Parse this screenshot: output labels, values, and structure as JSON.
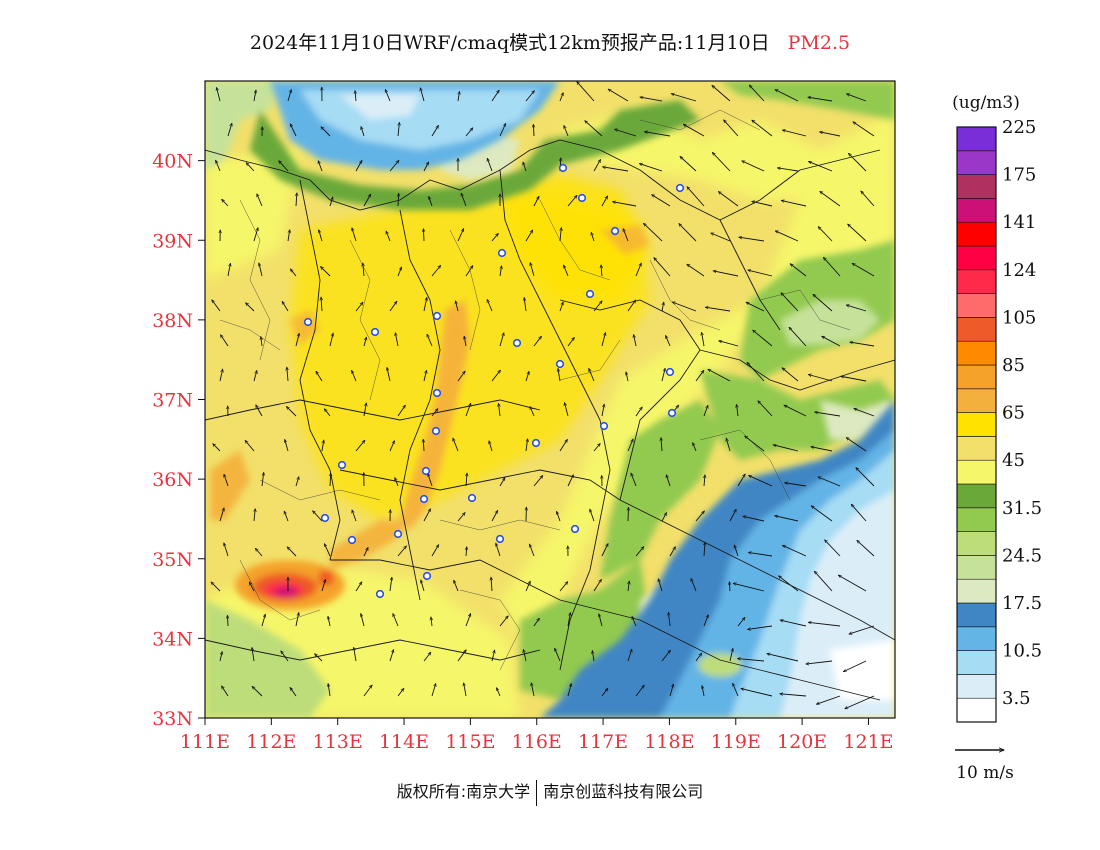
{
  "title": {
    "main": "2024年11月10日WRF/cmaq模式12km预报产品:11月10日",
    "pollutant": "PM2.5"
  },
  "axes": {
    "lat_labels": [
      "40N",
      "39N",
      "38N",
      "37N",
      "36N",
      "35N",
      "34N",
      "33N"
    ],
    "lat_values": [
      40,
      39,
      38,
      37,
      36,
      35,
      34,
      33
    ],
    "lon_labels": [
      "111E",
      "112E",
      "113E",
      "114E",
      "115E",
      "116E",
      "117E",
      "118E",
      "119E",
      "120E",
      "121E"
    ],
    "lon_values": [
      111,
      112,
      113,
      114,
      115,
      116,
      117,
      118,
      119,
      120,
      121
    ],
    "lon_range": [
      111,
      121.4
    ],
    "lat_range": [
      33,
      41
    ],
    "label_color": "#e8323c"
  },
  "colorbar": {
    "unit": "(ug/m3)",
    "colors": [
      "#ffffff",
      "#dbeef8",
      "#a6dcf4",
      "#64b4e6",
      "#3f86c4",
      "#dde9c0",
      "#c6e29a",
      "#bddd7a",
      "#92c94f",
      "#6aa83a",
      "#f6f66a",
      "#f2e06a",
      "#ffe200",
      "#f4b03c",
      "#f4a22a",
      "#ff8a00",
      "#ee5a28",
      "#ff6a6a",
      "#ff2a4a",
      "#ff0044",
      "#ff0000",
      "#cc1077",
      "#b03060",
      "#9a36c8",
      "#7a2ed8"
    ],
    "labels": [
      "3.5",
      "10.5",
      "17.5",
      "24.5",
      "31.5",
      "45",
      "65",
      "85",
      "105",
      "124",
      "141",
      "175",
      "225"
    ]
  },
  "wind_legend": {
    "label": "10 m/s"
  },
  "chart_data": {
    "type": "heatmap",
    "variable": "PM2.5",
    "unit": "ug/m3",
    "region": {
      "lon": [
        111,
        121.4
      ],
      "lat": [
        33,
        41
      ]
    },
    "pollution_zones": [
      {
        "lon": 112.1,
        "lat": 34.65,
        "level": "175"
      },
      {
        "lon": 114.5,
        "lat": 36.8,
        "level": "85"
      },
      {
        "lon": 115.5,
        "lat": 38.5,
        "level": "65"
      },
      {
        "lon": 120.3,
        "lat": 34.2,
        "level": "3.5"
      },
      {
        "lon": 114.5,
        "lat": 40.6,
        "level": "10.5"
      }
    ]
  },
  "footer": {
    "copyright": "版权所有:南京大学",
    "company": "南京创蓝科技有限公司"
  }
}
